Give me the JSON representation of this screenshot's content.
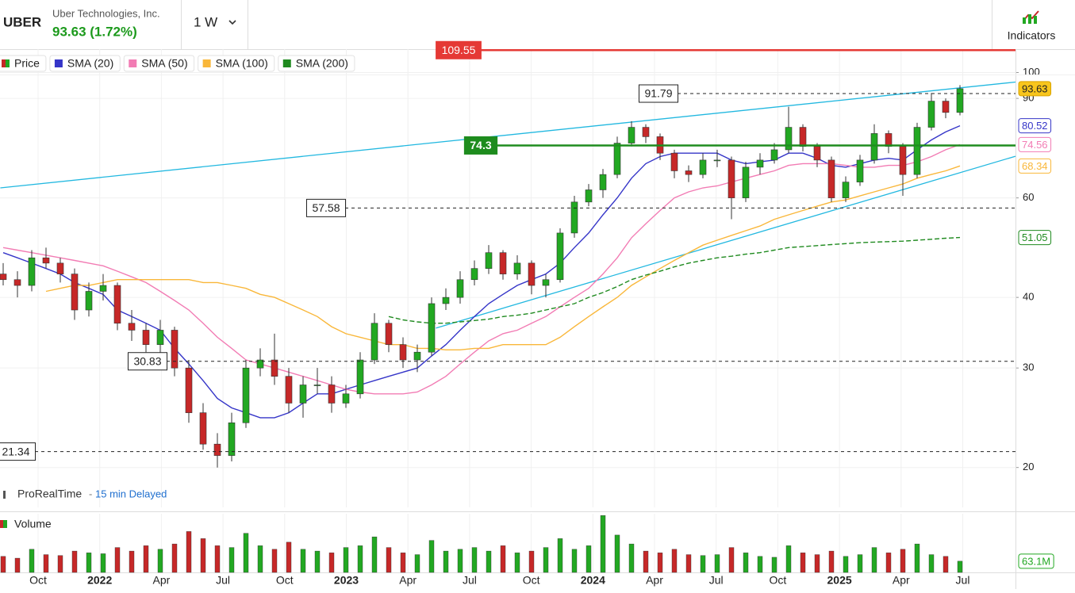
{
  "header": {
    "symbol": "UBER",
    "company": "Uber Technologies, Inc.",
    "quote": "93.63 (1.72%)",
    "interval": "1 W",
    "indicators": "Indicators"
  },
  "footer": {
    "source": "ProRealTime",
    "delay": "15 min Delayed"
  },
  "chart_data": {
    "type": "candlestick",
    "price_name": "Price",
    "log_scale": true,
    "grid": true,
    "ylim": [
      17,
      110
    ],
    "yticks": [
      20,
      30,
      40,
      60,
      90,
      100
    ],
    "x_labels": [
      "Oct",
      "2022",
      "Apr",
      "Jul",
      "Oct",
      "2023",
      "Apr",
      "Jul",
      "Oct",
      "2024",
      "Apr",
      "Jul",
      "Oct",
      "2025",
      "Apr",
      "Jul"
    ],
    "up_color": "#22a822",
    "down_color": "#c62828",
    "ohlc": [
      [
        44,
        46,
        42,
        43
      ],
      [
        43,
        44.5,
        40,
        42
      ],
      [
        42,
        48.5,
        41,
        47
      ],
      [
        47,
        49,
        45,
        46
      ],
      [
        46,
        47,
        42.5,
        44
      ],
      [
        44,
        45,
        36.5,
        38
      ],
      [
        38,
        42.5,
        37,
        41
      ],
      [
        41,
        44,
        39.5,
        42
      ],
      [
        42,
        42.5,
        35,
        36
      ],
      [
        36,
        38,
        33.5,
        35
      ],
      [
        35,
        36,
        32,
        33
      ],
      [
        33,
        36.5,
        31.5,
        35
      ],
      [
        35,
        35.5,
        29,
        30
      ],
      [
        30,
        31,
        24,
        25
      ],
      [
        25,
        26,
        21.5,
        22
      ],
      [
        22,
        23,
        20,
        21
      ],
      [
        21,
        25,
        20.5,
        24
      ],
      [
        24,
        31,
        23.5,
        30
      ],
      [
        30,
        32.5,
        29,
        31
      ],
      [
        31,
        34.5,
        28,
        29
      ],
      [
        29,
        30,
        25,
        26
      ],
      [
        26,
        29,
        24.5,
        28
      ],
      [
        28,
        30,
        27,
        28
      ],
      [
        28,
        29,
        25,
        26
      ],
      [
        26,
        28,
        25.5,
        27
      ],
      [
        27,
        32,
        26.5,
        31
      ],
      [
        31,
        37.5,
        30.5,
        36
      ],
      [
        36,
        36.5,
        32,
        33
      ],
      [
        33,
        34,
        30,
        31
      ],
      [
        31,
        33,
        29.5,
        32
      ],
      [
        32,
        40,
        31.5,
        39
      ],
      [
        39,
        41.5,
        38,
        40
      ],
      [
        40,
        44.5,
        39,
        43
      ],
      [
        43,
        46.5,
        42,
        45
      ],
      [
        45,
        49.5,
        44,
        48
      ],
      [
        48,
        48.5,
        43,
        44
      ],
      [
        44,
        47.5,
        43,
        46
      ],
      [
        46,
        46.5,
        40.5,
        42
      ],
      [
        42,
        44,
        40,
        43
      ],
      [
        43,
        53,
        42.5,
        52
      ],
      [
        52,
        60.5,
        51,
        59
      ],
      [
        59,
        63.5,
        58,
        62
      ],
      [
        62,
        67.5,
        60,
        66
      ],
      [
        66,
        77,
        65,
        75
      ],
      [
        75,
        82,
        74,
        80
      ],
      [
        80,
        81,
        75,
        77
      ],
      [
        77,
        78,
        70,
        72
      ],
      [
        72,
        73,
        65,
        67
      ],
      [
        67,
        68.5,
        64,
        66
      ],
      [
        66,
        72,
        65,
        70
      ],
      [
        70,
        73,
        68,
        70
      ],
      [
        70,
        71,
        55,
        60
      ],
      [
        60,
        69.5,
        59,
        68
      ],
      [
        68,
        72,
        66,
        70
      ],
      [
        70,
        75,
        69,
        73
      ],
      [
        73,
        87,
        72,
        80
      ],
      [
        80,
        81,
        72.5,
        74
      ],
      [
        74,
        75,
        68,
        70
      ],
      [
        70,
        71,
        59,
        60
      ],
      [
        60,
        65.5,
        59,
        64
      ],
      [
        64,
        71.5,
        63,
        70
      ],
      [
        70,
        81,
        69,
        78
      ],
      [
        78,
        79,
        72,
        74
      ],
      [
        74,
        75,
        60.5,
        66
      ],
      [
        66,
        81.5,
        65,
        80
      ],
      [
        80,
        92,
        79,
        89
      ],
      [
        89,
        90,
        83,
        85
      ],
      [
        85,
        95,
        84,
        93.63
      ]
    ],
    "series": [
      {
        "name": "SMA (20)",
        "color": "#3535c8",
        "values": [
          48,
          47,
          46,
          45,
          44,
          42.5,
          41.5,
          40.5,
          38,
          37,
          36,
          35,
          32.5,
          30.5,
          28.5,
          26.5,
          25.5,
          25,
          24.5,
          24.5,
          25,
          26,
          27,
          27,
          27.5,
          28,
          28.5,
          29,
          29.5,
          30,
          31.5,
          33,
          35,
          37,
          39,
          40.5,
          42,
          43,
          44,
          46,
          49,
          52,
          56,
          60,
          65,
          69,
          71,
          72,
          72,
          72,
          72,
          70,
          69,
          69.5,
          70,
          72,
          72,
          70.5,
          68.5,
          68,
          69,
          70,
          70.5,
          70,
          73,
          76,
          78.5,
          80.52
        ]
      },
      {
        "name": "SMA (50)",
        "color": "#f27cb4",
        "values": [
          49,
          48.5,
          48,
          47.5,
          47,
          46.5,
          46,
          45.5,
          44.5,
          43.5,
          42.5,
          41,
          39.5,
          38,
          36,
          34,
          32.5,
          31,
          30.5,
          30,
          29.5,
          29,
          28.5,
          28,
          27.5,
          27.2,
          27,
          27,
          27,
          27.2,
          28,
          29,
          30.5,
          32,
          33.5,
          34.5,
          35,
          36,
          37,
          38.5,
          40,
          41.5,
          44,
          47,
          51,
          54,
          57,
          60,
          61.5,
          62.5,
          63,
          64,
          65,
          66,
          67,
          68.5,
          69,
          69,
          69,
          68.5,
          68,
          68,
          68.5,
          68.5,
          69.5,
          71,
          73,
          74.56
        ]
      },
      {
        "name": "SMA (100)",
        "color": "#f9b73a",
        "values": [
          null,
          null,
          null,
          41,
          41.5,
          42,
          42,
          42.5,
          43,
          43,
          43,
          43,
          43,
          43,
          42.5,
          42.5,
          42,
          41.5,
          40.5,
          40,
          39,
          38,
          37,
          35.5,
          34.5,
          34,
          33.5,
          33,
          33,
          32.5,
          32.5,
          32.3,
          32.3,
          32.5,
          32.5,
          33,
          33,
          33,
          33,
          34,
          35.5,
          37,
          38.5,
          40,
          42,
          43.5,
          45,
          46.5,
          48,
          49.5,
          50.5,
          51.5,
          52.5,
          53.5,
          55,
          56,
          57,
          58,
          59,
          59.5,
          60.5,
          61.5,
          62.5,
          63.5,
          65,
          66,
          67,
          68.34
        ]
      },
      {
        "name": "SMA (200)",
        "color": "#1f8a1f",
        "dashed": true,
        "values": [
          null,
          null,
          null,
          null,
          null,
          null,
          null,
          null,
          null,
          null,
          null,
          null,
          null,
          null,
          null,
          null,
          null,
          null,
          null,
          null,
          null,
          null,
          null,
          null,
          null,
          null,
          null,
          37,
          36.5,
          36.2,
          36,
          36,
          36.2,
          36.4,
          36.6,
          37,
          37.2,
          37.5,
          38,
          38.5,
          39,
          40,
          40.8,
          41.8,
          43,
          43.8,
          44.5,
          45.3,
          46,
          46.5,
          47,
          47.3,
          47.7,
          48,
          48.5,
          49,
          49.2,
          49.4,
          49.6,
          49.8,
          50,
          50.1,
          50.2,
          50.3,
          50.5,
          50.7,
          50.9,
          51.05
        ]
      }
    ],
    "levels": [
      {
        "value": 109.55,
        "color": "#e53935",
        "style": "solid"
      },
      {
        "value": 91.79,
        "color": "#222222",
        "style": "dashed"
      },
      {
        "value": 74.3,
        "color": "#1e8c1e",
        "style": "solid"
      },
      {
        "value": 57.58,
        "color": "#222222",
        "style": "dashed"
      },
      {
        "value": 30.83,
        "color": "#222222",
        "style": "dashed"
      },
      {
        "value": 21.34,
        "color": "#222222",
        "style": "dashed"
      }
    ],
    "trendlines": [
      {
        "color": "#22b8e0",
        "x": [
          -0.2,
          70.9
        ],
        "y": [
          62.5,
          96.2
        ]
      },
      {
        "color": "#22b8e0",
        "x": [
          30.3,
          70.9
        ],
        "y": [
          35.3,
          71.1
        ]
      }
    ],
    "volume": {
      "name": "Volume",
      "ylim": [
        0,
        330
      ],
      "yticks": [
        {
          "value": 63.1,
          "label": "63.1M"
        }
      ],
      "values": [
        90,
        80,
        130,
        100,
        95,
        120,
        110,
        105,
        140,
        120,
        150,
        130,
        160,
        230,
        190,
        150,
        140,
        220,
        150,
        130,
        170,
        130,
        120,
        110,
        140,
        150,
        200,
        140,
        110,
        100,
        180,
        120,
        130,
        140,
        120,
        150,
        110,
        120,
        140,
        190,
        130,
        150,
        320,
        210,
        160,
        120,
        110,
        130,
        100,
        95,
        100,
        140,
        110,
        90,
        85,
        150,
        110,
        100,
        120,
        90,
        100,
        140,
        110,
        130,
        160,
        100,
        90,
        63.1
      ]
    }
  }
}
